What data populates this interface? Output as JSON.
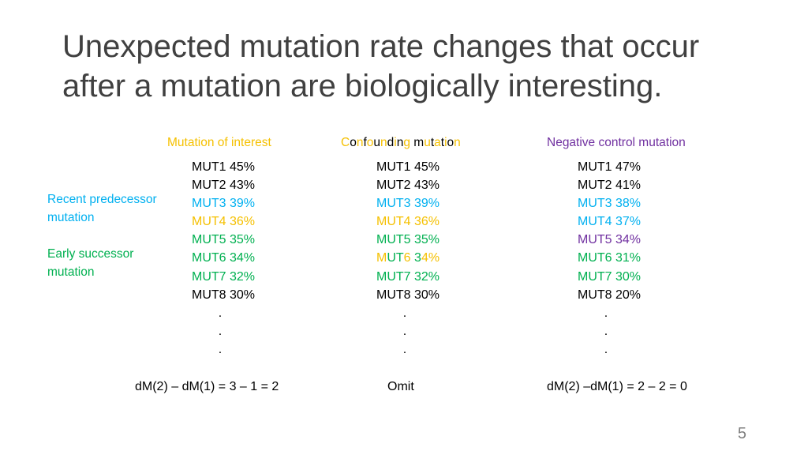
{
  "title": {
    "line1": "Unexpected mutation rate changes that occur",
    "line2": "after a mutation are biologically interesting."
  },
  "colors": {
    "black": "#000000",
    "blue": "#00b0f0",
    "yellow": "#f5c000",
    "green": "#00b050",
    "purple": "#7030a0"
  },
  "side_labels": {
    "recent_line1": "Recent predecessor",
    "recent_line2": "mutation",
    "early_line1": "Early successor",
    "early_line2": "mutation"
  },
  "columns": [
    {
      "header": "Mutation of interest",
      "rows": [
        {
          "text": "MUT1 45%",
          "color": "black"
        },
        {
          "text": "MUT2 43%",
          "color": "black"
        },
        {
          "text": "MUT3 39%",
          "color": "blue"
        },
        {
          "text": "MUT4 36%",
          "color": "yellow"
        },
        {
          "text": "MUT5 35%",
          "color": "green"
        },
        {
          "text": "MUT6 34%",
          "color": "green"
        },
        {
          "text": "MUT7 32%",
          "color": "green"
        },
        {
          "text": "MUT8 30%",
          "color": "black"
        },
        {
          "text": ".",
          "color": "black"
        },
        {
          "text": ".",
          "color": "black"
        },
        {
          "text": ".",
          "color": "black"
        }
      ],
      "formula": "dM(2) – dM(1) = 3 – 1 = 2"
    },
    {
      "header": "Confounding mutation",
      "rows": [
        {
          "text": "MUT1 45%",
          "color": "black"
        },
        {
          "text": "MUT2 43%",
          "color": "black"
        },
        {
          "text": "MUT3 39%",
          "color": "blue"
        },
        {
          "text": "MUT4 36%",
          "color": "yellow"
        },
        {
          "text": "MUT5 35%",
          "color": "green"
        },
        {
          "text": "MUT6 34%",
          "color": "mixed"
        },
        {
          "text": "MUT7 32%",
          "color": "green"
        },
        {
          "text": "MUT8 30%",
          "color": "black"
        },
        {
          "text": ".",
          "color": "black"
        },
        {
          "text": ".",
          "color": "black"
        },
        {
          "text": ".",
          "color": "black"
        }
      ],
      "formula": "Omit"
    },
    {
      "header": "Negative control mutation",
      "rows": [
        {
          "text": "MUT1 47%",
          "color": "black"
        },
        {
          "text": "MUT2 41%",
          "color": "black"
        },
        {
          "text": "MUT3 38%",
          "color": "blue"
        },
        {
          "text": "MUT4 37%",
          "color": "blue"
        },
        {
          "text": "MUT5 34%",
          "color": "purple"
        },
        {
          "text": "MUT6 31%",
          "color": "green"
        },
        {
          "text": "MUT7 30%",
          "color": "green"
        },
        {
          "text": "MUT8 20%",
          "color": "black"
        },
        {
          "text": ".",
          "color": "black"
        },
        {
          "text": ".",
          "color": "black"
        },
        {
          "text": ".",
          "color": "black"
        }
      ],
      "formula": "dM(2) –dM(1) = 2 – 2 = 0"
    }
  ],
  "page_number": "5"
}
